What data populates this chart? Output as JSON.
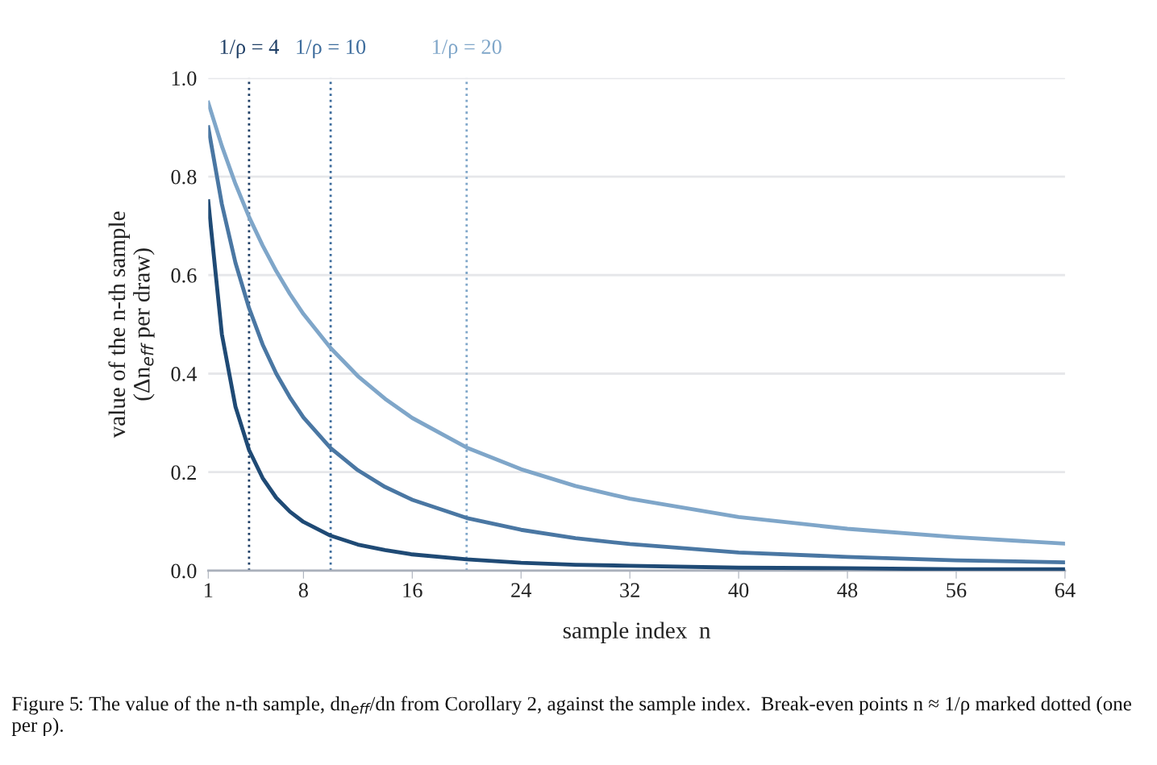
{
  "chart_data": {
    "type": "line",
    "xlabel": "sample index  n",
    "ylabel": "value of the n-th sample\n(Δn$_{eff}$ per draw)",
    "x": [
      1,
      2,
      3,
      4,
      5,
      6,
      7,
      8,
      10,
      12,
      14,
      16,
      20,
      24,
      28,
      32,
      40,
      48,
      56,
      64
    ],
    "series": [
      {
        "color": "#7fa6c9",
        "values": [
          0.95,
          0.862,
          0.785,
          0.718,
          0.66,
          0.608,
          0.562,
          0.521,
          0.452,
          0.395,
          0.349,
          0.31,
          0.25,
          0.206,
          0.172,
          0.146,
          0.109,
          0.085,
          0.068,
          0.055
        ]
      },
      {
        "color": "#4a77a3",
        "values": [
          0.9,
          0.744,
          0.625,
          0.533,
          0.459,
          0.4,
          0.352,
          0.311,
          0.249,
          0.204,
          0.17,
          0.144,
          0.107,
          0.083,
          0.066,
          0.054,
          0.037,
          0.028,
          0.021,
          0.017
        ]
      },
      {
        "color": "#1f4a75",
        "values": [
          0.75,
          0.48,
          0.333,
          0.245,
          0.188,
          0.148,
          0.12,
          0.099,
          0.071,
          0.053,
          0.042,
          0.033,
          0.023,
          0.016,
          0.012,
          0.01,
          0.006,
          0.005,
          0.003,
          0.003
        ]
      }
    ],
    "xlim": [
      1,
      64
    ],
    "xticks": [
      1,
      8,
      16,
      24,
      32,
      40,
      48,
      56,
      64
    ],
    "ylim": [
      0,
      1
    ],
    "yticks": [
      {
        "value": 0,
        "label": "0.0"
      },
      {
        "value": 0.2,
        "label": "0.2"
      },
      {
        "value": 0.4,
        "label": "0.4"
      },
      {
        "value": 0.6,
        "label": "0.6"
      },
      {
        "value": 0.8,
        "label": "0.8"
      },
      {
        "value": 1,
        "label": "1.0"
      }
    ],
    "grid": "y",
    "marker": "none",
    "line_style": "solid",
    "ref_lines": [
      {
        "axis": "x",
        "value": 4,
        "label": "1/ρ = 4",
        "color": "#1f3f66",
        "line_style": "dotted"
      },
      {
        "axis": "x",
        "value": 10,
        "label": "1/ρ = 10",
        "color": "#3d6c9c",
        "line_style": "dotted"
      },
      {
        "axis": "x",
        "value": 20,
        "label": "1/ρ = 20",
        "color": "#7fa6c9",
        "line_style": "dotted"
      }
    ],
    "annotations": [
      "Figure 5: The value of the n-th sample, dn$_{eff}$/dn from Corollary 2, against the sample index.  Break-even points n ≈ 1/ρ marked dotted (one per ρ)."
    ]
  }
}
